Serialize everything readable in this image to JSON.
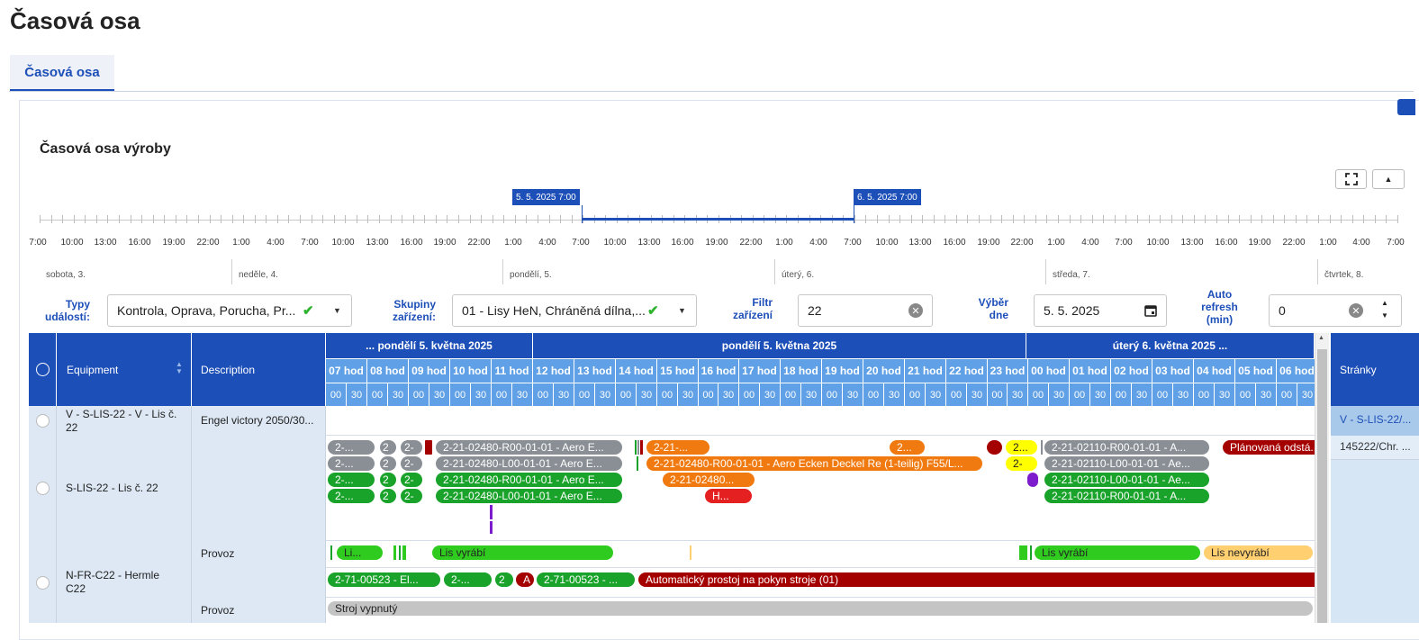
{
  "page": {
    "title": "Časová osa"
  },
  "tabs": [
    {
      "label": "Časová osa"
    }
  ],
  "section": {
    "title": "Časová osa výroby"
  },
  "toolbar": {
    "fullscreen_icon": "fullscreen-icon",
    "collapse_icon": "chevron-up-icon"
  },
  "range": {
    "start": "5. 5. 2025 7:00",
    "end": "6. 5. 2025 7:00"
  },
  "ruler": {
    "tick_labels": [
      "7:00",
      "10:00",
      "13:00",
      "16:00",
      "19:00",
      "22:00",
      "1:00",
      "4:00",
      "7:00",
      "10:00",
      "13:00",
      "16:00",
      "19:00",
      "22:00",
      "1:00",
      "4:00",
      "7:00",
      "10:00",
      "13:00",
      "16:00",
      "19:00",
      "22:00",
      "1:00",
      "4:00",
      "7:00",
      "10:00",
      "13:00",
      "16:00",
      "19:00",
      "22:00",
      "1:00",
      "4:00",
      "7:00",
      "10:00",
      "13:00",
      "16:00",
      "19:00",
      "22:00",
      "1:00",
      "4:00",
      "7:00"
    ],
    "days": [
      "sobota, 3.",
      "neděle, 4.",
      "pondělí, 5.",
      "úterý, 6.",
      "středa, 7.",
      "čtvrtek, 8."
    ]
  },
  "filters": {
    "event_types": {
      "label": "Typy událostí:",
      "value": "Kontrola, Oprava, Porucha, Pr..."
    },
    "device_groups": {
      "label": "Skupiny zařízení:",
      "value": "01 - Lisy HeN, Chráněná dílna,..."
    },
    "device_filter": {
      "label": "Filtr zařízení",
      "value": "22"
    },
    "day": {
      "label": "Výběr dne",
      "value": "5. 5. 2025"
    },
    "auto_refresh": {
      "label": "Auto refresh (min)",
      "value": "0"
    }
  },
  "grid": {
    "columns": {
      "equipment": "Equipment",
      "description": "Description",
      "pages": "Stránky"
    },
    "days": [
      "... pondělí 5. května 2025",
      "pondělí 5. května 2025",
      "úterý 6. května 2025 ..."
    ],
    "hours": [
      "07 hod",
      "08 hod",
      "09 hod",
      "10 hod",
      "11 hod",
      "12 hod",
      "13 hod",
      "14 hod",
      "15 hod",
      "16 hod",
      "17 hod",
      "18 hod",
      "19 hod",
      "20 hod",
      "21 hod",
      "22 hod",
      "23 hod",
      "00 hod",
      "01 hod",
      "02 hod",
      "03 hod",
      "04 hod",
      "05 hod",
      "06 hod"
    ],
    "half_a": "00",
    "half_b": "30",
    "rows": {
      "r1": {
        "equipment": "V - S-LIS-22 - V - Lis č. 22",
        "description": "Engel victory 2050/30...",
        "pages": "V - S-LIS-22/..."
      },
      "r2": {
        "equipment": "S-LIS-22 - Lis č. 22",
        "description": "",
        "pages": "145222/Chr. ..."
      },
      "r3": {
        "equipment": "",
        "description": "Provoz"
      },
      "r4": {
        "equipment": "N-FR-C22 - Hermle C22",
        "description": ""
      },
      "r5": {
        "equipment": "",
        "description": "Provoz"
      }
    },
    "bars": {
      "g1": "2-...",
      "g2": "2",
      "g3": "2-",
      "g4": "2-21-02480-R00-01-01 - Aero E...",
      "g5": "2-...",
      "g6": "2",
      "g7": "2-",
      "g8": "2-21-02480-L00-01-01 - Aero E...",
      "gr1": "2-...",
      "gr2": "2",
      "gr3": "2-",
      "gr4": "2-21-02480-R00-01-01 - Aero E...",
      "gr5": "2-...",
      "gr6": "2",
      "gr7": "2-",
      "gr8": "2-21-02480-L00-01-01 - Aero E...",
      "o1": "2-21-...",
      "o2": "2...",
      "o3": "2-21-02480-R00-01-01 - Aero Ecken Deckel Re (1-teilig) F55/L...",
      "o4": "2-21-02480...",
      "r1": "H...",
      "y1": "2...",
      "y2": "2-",
      "gy1": "2-21-02110-R00-01-01 - A...",
      "gy2": "2-21-02110-L00-01-01 - Ae...",
      "gn1": "2-21-02110-L00-01-01 - Ae...",
      "gn2": "2-21-02110-R00-01-01 - A...",
      "dr1": "Plánovaná odstá...",
      "p1": "Li...",
      "p2": "Lis vyrábí",
      "p3": "Lis vyrábí",
      "p4": "Lis nevyrábí",
      "n1": "2-71-00523 - El...",
      "n2": "2-...",
      "n3": "2",
      "n4": "A",
      "n5": "2-71-00523 - ...",
      "n6": "Automatický prostoj na pokyn stroje (01)",
      "s1": "Stroj vypnutý"
    }
  }
}
